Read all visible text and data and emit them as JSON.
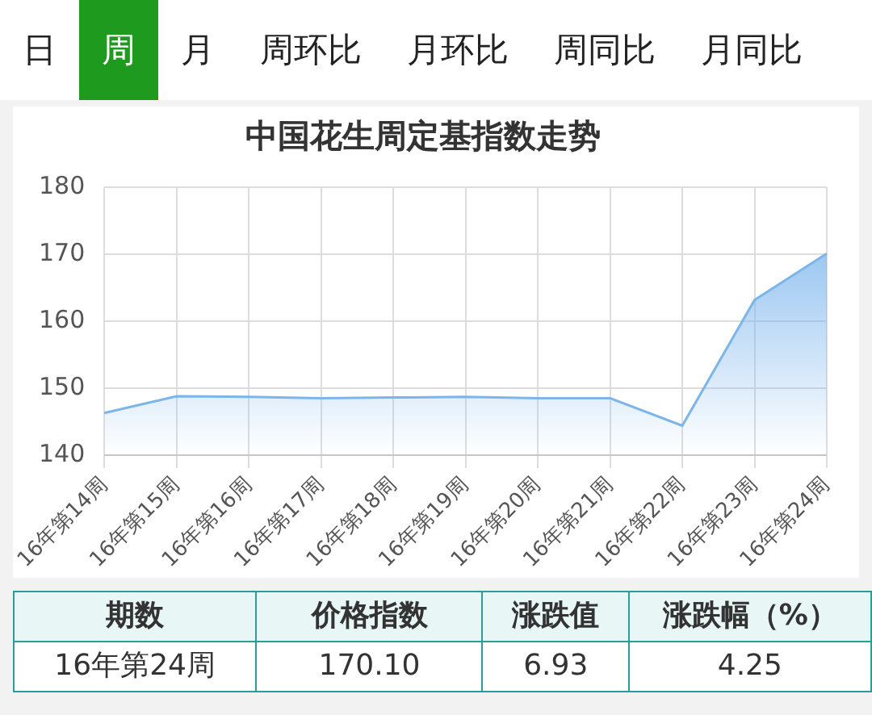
{
  "chart_data": {
    "type": "area",
    "title": "中国花生周定基指数走势",
    "categories": [
      "16年第14周",
      "16年第15周",
      "16年第16周",
      "16年第17周",
      "16年第18周",
      "16年第19周",
      "16年第20周",
      "16年第21周",
      "16年第22周",
      "16年第23周",
      "16年第24周"
    ],
    "series": [
      {
        "color": "#7cb5ec",
        "values": [
          146.3,
          148.8,
          148.7,
          148.5,
          148.6,
          148.7,
          148.5,
          148.5,
          144.4,
          163.17,
          170.1
        ]
      }
    ],
    "ylim": [
      140,
      180
    ],
    "yticks": [
      140,
      150,
      160,
      170,
      180
    ],
    "grid": true,
    "legend": false,
    "marker": "none",
    "annotations": [
      "日",
      "周",
      "月",
      "周环比",
      "月环比",
      "周同比",
      "月同比",
      "期数",
      "价格指数",
      "涨跌值",
      "涨跌幅（%）",
      "16年第24周",
      "170.10",
      "6.93",
      "4.25"
    ]
  }
}
